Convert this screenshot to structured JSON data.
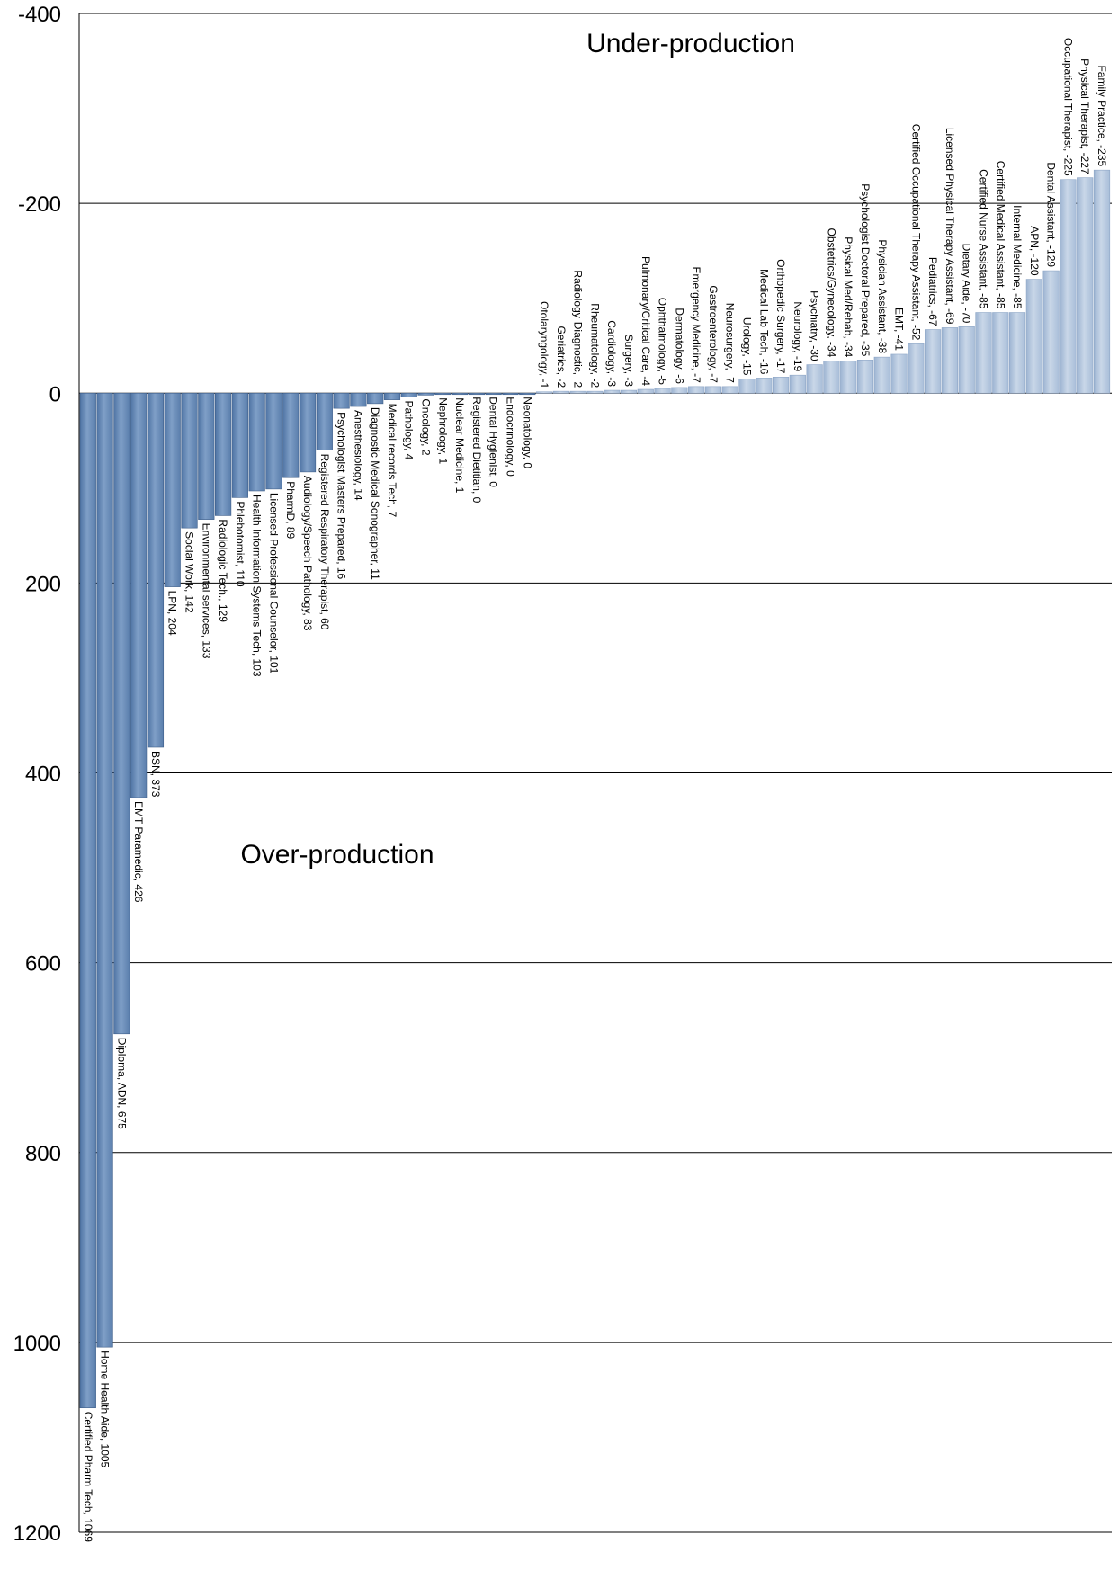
{
  "chart_data": {
    "type": "bar",
    "orientation": "vertical",
    "y_axis_inverted": true,
    "ylim": [
      1200,
      -400
    ],
    "yticks": [
      -400,
      -200,
      0,
      200,
      400,
      600,
      800,
      1000,
      1200
    ],
    "grid": true,
    "bar_color": "#7a9ac3",
    "annotations": [
      "Under-production",
      "Over-production"
    ],
    "bars": [
      {
        "label": "Certified Pharm Tech, 1069",
        "value": 1069
      },
      {
        "label": "Home Health Aide, 1005",
        "value": 1005
      },
      {
        "label": "Diploma, ADN, 675",
        "value": 675
      },
      {
        "label": "EMT Paramedic, 426",
        "value": 426
      },
      {
        "label": "BSN, 373",
        "value": 373
      },
      {
        "label": "LPN, 204",
        "value": 204
      },
      {
        "label": "Social Work, 142",
        "value": 142
      },
      {
        "label": "Environmental services, 133",
        "value": 133
      },
      {
        "label": "Radiologic Tech., 129",
        "value": 129
      },
      {
        "label": "Phlebotomist, 110",
        "value": 110
      },
      {
        "label": "Health Information Systems Tech, 103",
        "value": 103
      },
      {
        "label": "Licensed Professional Counselor, 101",
        "value": 101
      },
      {
        "label": "PharmD, 89",
        "value": 89
      },
      {
        "label": "Audiology/Speech Pathology, 83",
        "value": 83
      },
      {
        "label": "Registered Respiratory Therapist, 60",
        "value": 60
      },
      {
        "label": "Psychologist Masters Prepared, 16",
        "value": 16
      },
      {
        "label": "Anesthesiology, 14",
        "value": 14
      },
      {
        "label": "Diagnostic Medical Sonographer, 11",
        "value": 11
      },
      {
        "label": "Medical records Tech, 7",
        "value": 7
      },
      {
        "label": "Pathology, 4",
        "value": 4
      },
      {
        "label": "Oncology, 2",
        "value": 2
      },
      {
        "label": "Nephrology, 1",
        "value": 1
      },
      {
        "label": "Nuclear Medicine, 1",
        "value": 1
      },
      {
        "label": "Registered Dietitian, 0",
        "value": 0
      },
      {
        "label": "Dental Hygienist, 0",
        "value": 0
      },
      {
        "label": "Endocrinology, 0",
        "value": 0
      },
      {
        "label": "Neonatology, 0",
        "value": 0
      },
      {
        "label": "Otolaryngology, -1",
        "value": -1
      },
      {
        "label": "Geriatrics, -2",
        "value": -2
      },
      {
        "label": "Radiology-Diagnostic, -2",
        "value": -2
      },
      {
        "label": "Rheumatology, -2",
        "value": -2
      },
      {
        "label": "Cardiology, -3",
        "value": -3
      },
      {
        "label": "Surgery, -3",
        "value": -3
      },
      {
        "label": "Pulmonary/Critical Care, -4",
        "value": -4
      },
      {
        "label": "Ophthalmology, -5",
        "value": -5
      },
      {
        "label": "Dermatology, -6",
        "value": -6
      },
      {
        "label": "Emergency Medicine, -7",
        "value": -7
      },
      {
        "label": "Gastroenterology, -7",
        "value": -7
      },
      {
        "label": "Neurosurgery, -7",
        "value": -7
      },
      {
        "label": "Urology, -15",
        "value": -15
      },
      {
        "label": "Medical Lab Tech, -16",
        "value": -16
      },
      {
        "label": "Orthopedic Surgery, -17",
        "value": -17
      },
      {
        "label": "Neurology, -19",
        "value": -19
      },
      {
        "label": "Psychiatry, -30",
        "value": -30
      },
      {
        "label": "Obstetrics/Gynecology, -34",
        "value": -34
      },
      {
        "label": "Physical Med/Rehab, -34",
        "value": -34
      },
      {
        "label": "Psychologist Doctoral Prepared, -35",
        "value": -35
      },
      {
        "label": "Physician Assistant, -38",
        "value": -38
      },
      {
        "label": "EMT, -41",
        "value": -41
      },
      {
        "label": "Certified Occupational Therapy Assistant, -52",
        "value": -52
      },
      {
        "label": "Pediatrics, -67",
        "value": -67
      },
      {
        "label": "Licensed Physical Therapy Assistant, -69",
        "value": -69
      },
      {
        "label": "Dietary Aide, -70",
        "value": -70
      },
      {
        "label": "Certified Nurse Assistant, -85",
        "value": -85
      },
      {
        "label": "Certified Medical Assistant, -85",
        "value": -85
      },
      {
        "label": "Internal Medicine, -85",
        "value": -85
      },
      {
        "label": "APN, -120",
        "value": -120
      },
      {
        "label": "Dental Assistant, -129",
        "value": -129
      },
      {
        "label": "Occupational Therapist, -225",
        "value": -225
      },
      {
        "label": "Physical Therapist, -227",
        "value": -227
      },
      {
        "label": "Family Practice, -235",
        "value": -235
      }
    ]
  }
}
